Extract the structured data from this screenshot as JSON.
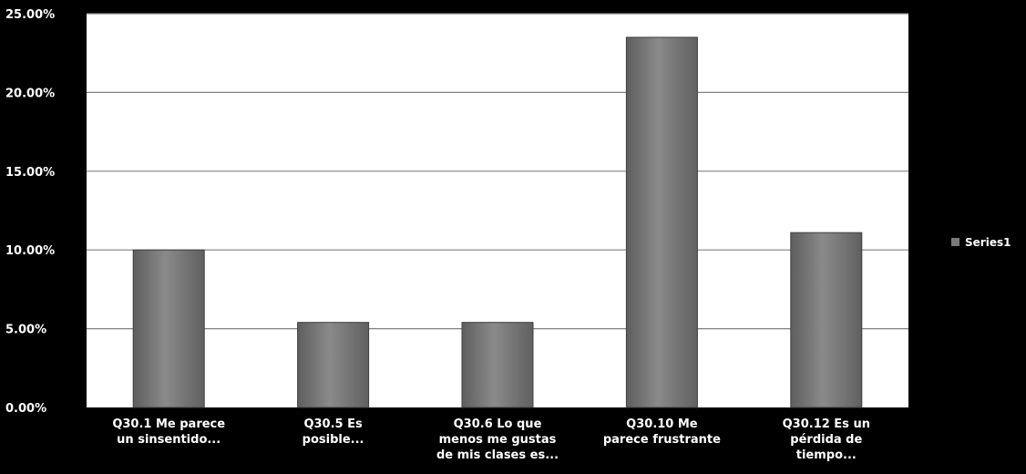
{
  "chart_data": {
    "type": "bar",
    "categories": [
      [
        "Q30.1 Me parece",
        "un sinsentido..."
      ],
      [
        "Q30.5 Es",
        "posible..."
      ],
      [
        "Q30.6  Lo que",
        "menos me gustas",
        "de mis clases es..."
      ],
      [
        "Q30.10 Me",
        "parece frustrante"
      ],
      [
        "Q30.12 Es un",
        "pérdida de",
        "tiempo..."
      ]
    ],
    "series": [
      {
        "name": "Series1",
        "values": [
          10.0,
          5.4,
          5.4,
          23.5,
          11.1
        ]
      }
    ],
    "yticks": [
      "0.00%",
      "5.00%",
      "10.00%",
      "15.00%",
      "20.00%",
      "25.00%"
    ],
    "ylim": [
      0,
      25
    ],
    "ystep": 5,
    "grid": true,
    "legend_position": "right",
    "colors": {
      "page_background": "#000000",
      "plot_background": "#ffffff",
      "bar_fill": "#7a7a7a",
      "bar_edge": "#3f3f3f",
      "gridline": "#808080",
      "text": "#ffffff"
    }
  }
}
